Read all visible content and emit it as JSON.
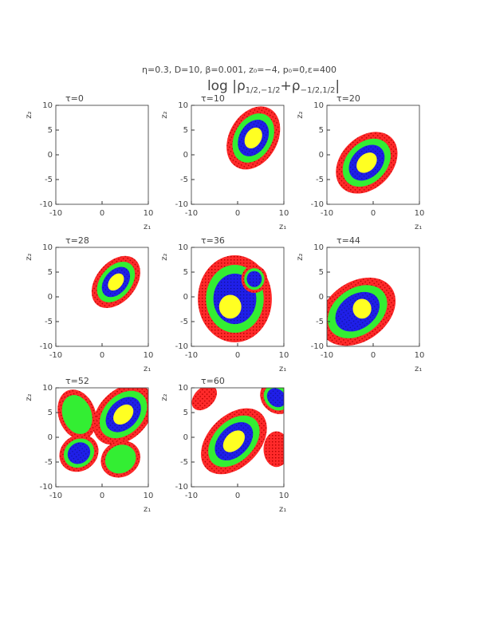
{
  "figure": {
    "params": "η=0.3, D=10, β=0.001, z₀=−4, p₀=0,ε=400",
    "title_parts": [
      "log |ρ",
      "1/2,−1/2",
      "+ρ",
      "−1/2,1/2",
      "|"
    ]
  },
  "chart_data": [
    {
      "type": "contour",
      "title": "τ=0",
      "xlabel": "z₁",
      "ylabel": "z₂",
      "xlim": [
        -10,
        10
      ],
      "ylim": [
        -10,
        10
      ],
      "xticks": [
        -10,
        0,
        10
      ],
      "yticks": [
        -10,
        -5,
        0,
        5,
        10
      ]
    },
    {
      "type": "contour",
      "title": "τ=10",
      "xlabel": "z₁",
      "ylabel": "z₂",
      "xlim": [
        -10,
        10
      ],
      "ylim": [
        -10,
        10
      ],
      "xticks": [
        -10,
        0,
        10
      ],
      "yticks": [
        -10,
        -5,
        0,
        5,
        10
      ]
    },
    {
      "type": "contour",
      "title": "τ=20",
      "xlabel": "z₁",
      "ylabel": "z₂",
      "xlim": [
        -10,
        10
      ],
      "ylim": [
        -10,
        10
      ],
      "xticks": [
        -10,
        0,
        10
      ],
      "yticks": [
        -10,
        -5,
        0,
        5,
        10
      ]
    },
    {
      "type": "contour",
      "title": "τ=28",
      "xlabel": "z₁",
      "ylabel": "z₂",
      "xlim": [
        -10,
        10
      ],
      "ylim": [
        -10,
        10
      ],
      "xticks": [
        -10,
        0,
        10
      ],
      "yticks": [
        -10,
        -5,
        0,
        5,
        10
      ]
    },
    {
      "type": "contour",
      "title": "τ=36",
      "xlabel": "z₁",
      "ylabel": "z₂",
      "xlim": [
        -10,
        10
      ],
      "ylim": [
        -10,
        10
      ],
      "xticks": [
        -10,
        0,
        10
      ],
      "yticks": [
        -10,
        -5,
        0,
        5,
        10
      ]
    },
    {
      "type": "contour",
      "title": "τ=44",
      "xlabel": "z₁",
      "ylabel": "z₂",
      "xlim": [
        -10,
        10
      ],
      "ylim": [
        -10,
        10
      ],
      "xticks": [
        -10,
        0,
        10
      ],
      "yticks": [
        -10,
        -5,
        0,
        5,
        10
      ]
    },
    {
      "type": "contour",
      "title": "τ=52",
      "xlabel": "z₁",
      "ylabel": "z₂",
      "xlim": [
        -10,
        10
      ],
      "ylim": [
        -10,
        10
      ],
      "xticks": [
        -10,
        0,
        10
      ],
      "yticks": [
        -10,
        -5,
        0,
        5,
        10
      ]
    },
    {
      "type": "contour",
      "title": "τ=60",
      "xlabel": "z₁",
      "ylabel": "z₂",
      "xlim": [
        -10,
        10
      ],
      "ylim": [
        -10,
        10
      ],
      "xticks": [
        -10,
        0,
        10
      ],
      "yticks": [
        -10,
        -5,
        0,
        5,
        10
      ]
    }
  ]
}
